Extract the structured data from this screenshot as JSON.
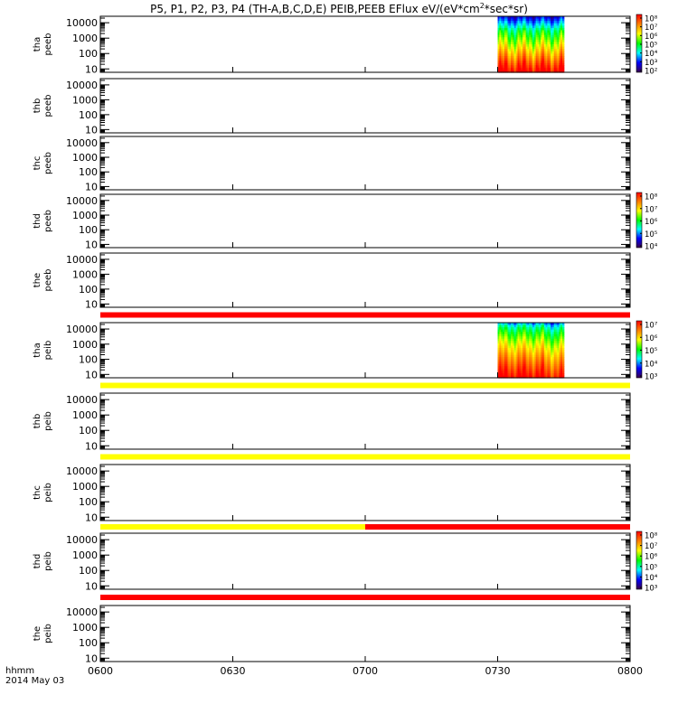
{
  "title_text": "P5, P1, P2, P3, P4 (TH-A,B,C,D,E) PEIB,PEEB EFlux eV/(eV*cm",
  "title_sup": "2",
  "title_end": "*sec*sr)",
  "footer": {
    "line1": "hhmm",
    "line2": "2014 May 03"
  },
  "colors": {
    "red_bar": "#ff0000",
    "yellow_bar": "#ffff00",
    "spectrogram_scale": [
      "#3c004a",
      "#0000ff",
      "#00ffff",
      "#00ff00",
      "#ffff00",
      "#ff8000",
      "#ff0000"
    ]
  },
  "chart_data": {
    "type": "heatmap",
    "x": {
      "range": [
        "0600",
        "0800"
      ],
      "tick_labels": [
        "0600",
        "0630",
        "0700",
        "0730",
        "0800"
      ]
    },
    "y_ticks": [
      "10",
      "100",
      "1000",
      "10000"
    ],
    "y_scale": "log",
    "panels": [
      {
        "ylabel1": "tha",
        "ylabel2": "peeb",
        "has_data": true,
        "data_range": [
          "0730",
          "0745"
        ],
        "colorbar": {
          "labels": [
            "10⁸",
            "10⁷",
            "10⁶",
            "10⁵",
            "10⁴",
            "10³",
            "10²"
          ]
        }
      },
      {
        "ylabel1": "thb",
        "ylabel2": "peeb",
        "has_data": false
      },
      {
        "ylabel1": "thc",
        "ylabel2": "peeb",
        "has_data": false
      },
      {
        "ylabel1": "thd",
        "ylabel2": "peeb",
        "has_data": false,
        "colorbar": {
          "labels": [
            "10⁸",
            "10⁷",
            "10⁶",
            "10⁵",
            "10⁴"
          ]
        }
      },
      {
        "ylabel1": "the",
        "ylabel2": "peeb",
        "has_data": false
      },
      {
        "ylabel1": "tha",
        "ylabel2": "peib",
        "has_data": true,
        "data_range": [
          "0730",
          "0745"
        ],
        "colorbar": {
          "labels": [
            "10⁷",
            "10⁶",
            "10⁵",
            "10⁴",
            "10³"
          ]
        }
      },
      {
        "ylabel1": "thb",
        "ylabel2": "peib",
        "has_data": false
      },
      {
        "ylabel1": "thc",
        "ylabel2": "peib",
        "has_data": false
      },
      {
        "ylabel1": "thd",
        "ylabel2": "peib",
        "has_data": false,
        "colorbar": {
          "labels": [
            "10⁸",
            "10⁷",
            "10⁶",
            "10⁵",
            "10⁴",
            "10³"
          ]
        }
      },
      {
        "ylabel1": "the",
        "ylabel2": "peib",
        "has_data": false
      }
    ],
    "status_bars": [
      {
        "after_panel": 4,
        "segments": [
          {
            "from": "0600",
            "to": "0800",
            "color": "red"
          }
        ]
      },
      {
        "after_panel": 5,
        "segments": [
          {
            "from": "0600",
            "to": "0800",
            "color": "yellow"
          }
        ]
      },
      {
        "after_panel": 6,
        "segments": [
          {
            "from": "0600",
            "to": "0800",
            "color": "yellow"
          }
        ]
      },
      {
        "after_panel": 7,
        "segments": [
          {
            "from": "0600",
            "to": "0700",
            "color": "yellow"
          },
          {
            "from": "0700",
            "to": "0800",
            "color": "red"
          }
        ]
      },
      {
        "after_panel": 8,
        "segments": [
          {
            "from": "0600",
            "to": "0800",
            "color": "red"
          }
        ]
      }
    ]
  }
}
